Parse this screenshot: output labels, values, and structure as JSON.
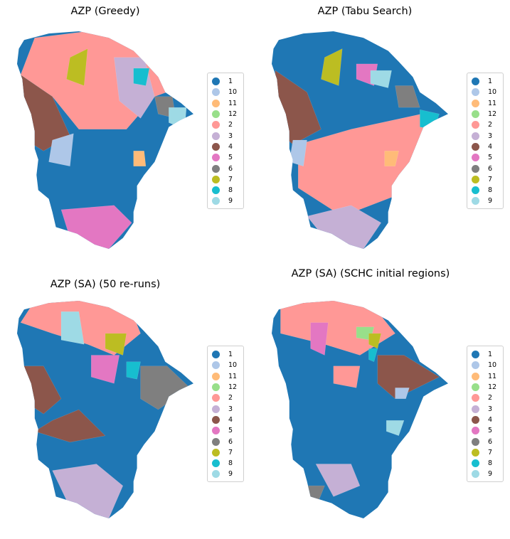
{
  "legend_labels": [
    "1",
    "10",
    "11",
    "12",
    "2",
    "3",
    "4",
    "5",
    "6",
    "7",
    "8",
    "9"
  ],
  "colors": {
    "1": "#1f77b4",
    "10": "#aec7e8",
    "11": "#ffbb78",
    "12": "#98df8a",
    "2": "#ff9896",
    "3": "#c5b0d5",
    "4": "#8c564b",
    "5": "#e377c2",
    "6": "#7f7f7f",
    "7": "#bcbd22",
    "8": "#17becf",
    "9": "#9edae5"
  },
  "panels": [
    {
      "title": "AZP (Greedy)",
      "base_region": "1",
      "regions": [
        {
          "label": "2",
          "points": [
            [
              0.1,
              0.03
            ],
            [
              0.4,
              0.0
            ],
            [
              0.75,
              0.05
            ],
            [
              0.95,
              0.25
            ],
            [
              0.78,
              0.3
            ],
            [
              0.62,
              0.45
            ],
            [
              0.35,
              0.45
            ],
            [
              0.2,
              0.3
            ],
            [
              0.02,
              0.2
            ]
          ]
        },
        {
          "label": "4",
          "points": [
            [
              0.02,
              0.2
            ],
            [
              0.2,
              0.3
            ],
            [
              0.3,
              0.48
            ],
            [
              0.15,
              0.55
            ],
            [
              0.05,
              0.5
            ],
            [
              0.0,
              0.3
            ]
          ]
        },
        {
          "label": "7",
          "points": [
            [
              0.3,
              0.12
            ],
            [
              0.4,
              0.08
            ],
            [
              0.38,
              0.25
            ],
            [
              0.28,
              0.22
            ]
          ]
        },
        {
          "label": "3",
          "points": [
            [
              0.55,
              0.12
            ],
            [
              0.72,
              0.12
            ],
            [
              0.78,
              0.3
            ],
            [
              0.7,
              0.4
            ],
            [
              0.58,
              0.32
            ]
          ]
        },
        {
          "label": "8",
          "points": [
            [
              0.66,
              0.17
            ],
            [
              0.75,
              0.17
            ],
            [
              0.73,
              0.25
            ],
            [
              0.66,
              0.24
            ]
          ]
        },
        {
          "label": "6",
          "points": [
            [
              0.78,
              0.3
            ],
            [
              0.88,
              0.3
            ],
            [
              0.9,
              0.4
            ],
            [
              0.8,
              0.38
            ]
          ]
        },
        {
          "label": "9",
          "points": [
            [
              0.86,
              0.35
            ],
            [
              0.96,
              0.35
            ],
            [
              0.95,
              0.45
            ],
            [
              0.86,
              0.42
            ]
          ]
        },
        {
          "label": "10",
          "points": [
            [
              0.2,
              0.5
            ],
            [
              0.32,
              0.47
            ],
            [
              0.3,
              0.62
            ],
            [
              0.18,
              0.6
            ]
          ]
        },
        {
          "label": "11",
          "points": [
            [
              0.66,
              0.55
            ],
            [
              0.72,
              0.55
            ],
            [
              0.73,
              0.62
            ],
            [
              0.66,
              0.62
            ]
          ]
        },
        {
          "label": "5",
          "points": [
            [
              0.25,
              0.82
            ],
            [
              0.55,
              0.8
            ],
            [
              0.65,
              0.88
            ],
            [
              0.52,
              1.0
            ],
            [
              0.3,
              0.95
            ]
          ]
        }
      ]
    },
    {
      "title": "AZP (Tabu Search)",
      "base_region": "1",
      "regions": [
        {
          "label": "2",
          "points": [
            [
              0.15,
              0.52
            ],
            [
              0.45,
              0.45
            ],
            [
              0.85,
              0.38
            ],
            [
              0.88,
              0.52
            ],
            [
              0.72,
              0.75
            ],
            [
              0.4,
              0.85
            ],
            [
              0.15,
              0.72
            ]
          ]
        },
        {
          "label": "3",
          "points": [
            [
              0.2,
              0.85
            ],
            [
              0.45,
              0.8
            ],
            [
              0.62,
              0.88
            ],
            [
              0.52,
              1.0
            ],
            [
              0.3,
              0.95
            ]
          ]
        },
        {
          "label": "4",
          "points": [
            [
              0.02,
              0.18
            ],
            [
              0.2,
              0.28
            ],
            [
              0.28,
              0.45
            ],
            [
              0.12,
              0.52
            ],
            [
              0.02,
              0.45
            ]
          ]
        },
        {
          "label": "7",
          "points": [
            [
              0.3,
              0.12
            ],
            [
              0.4,
              0.08
            ],
            [
              0.38,
              0.25
            ],
            [
              0.28,
              0.22
            ]
          ]
        },
        {
          "label": "5",
          "points": [
            [
              0.48,
              0.15
            ],
            [
              0.6,
              0.15
            ],
            [
              0.58,
              0.25
            ],
            [
              0.48,
              0.22
            ]
          ]
        },
        {
          "label": "9",
          "points": [
            [
              0.56,
              0.18
            ],
            [
              0.68,
              0.18
            ],
            [
              0.66,
              0.26
            ],
            [
              0.56,
              0.24
            ]
          ]
        },
        {
          "label": "6",
          "points": [
            [
              0.7,
              0.25
            ],
            [
              0.8,
              0.25
            ],
            [
              0.84,
              0.35
            ],
            [
              0.72,
              0.35
            ]
          ]
        },
        {
          "label": "8",
          "points": [
            [
              0.84,
              0.36
            ],
            [
              0.95,
              0.38
            ],
            [
              0.92,
              0.45
            ],
            [
              0.84,
              0.44
            ]
          ]
        },
        {
          "label": "10",
          "points": [
            [
              0.12,
              0.5
            ],
            [
              0.2,
              0.5
            ],
            [
              0.18,
              0.62
            ],
            [
              0.1,
              0.6
            ]
          ]
        },
        {
          "label": "11",
          "points": [
            [
              0.64,
              0.55
            ],
            [
              0.72,
              0.55
            ],
            [
              0.7,
              0.62
            ],
            [
              0.64,
              0.62
            ]
          ]
        }
      ]
    },
    {
      "title": "AZP (SA) (50 re-runs)",
      "base_region": "1",
      "regions": [
        {
          "label": "2",
          "points": [
            [
              0.1,
              0.0
            ],
            [
              0.4,
              0.0
            ],
            [
              0.65,
              0.05
            ],
            [
              0.7,
              0.15
            ],
            [
              0.55,
              0.25
            ],
            [
              0.4,
              0.2
            ],
            [
              0.2,
              0.15
            ],
            [
              0.02,
              0.1
            ]
          ]
        },
        {
          "label": "9",
          "points": [
            [
              0.25,
              0.05
            ],
            [
              0.35,
              0.05
            ],
            [
              0.38,
              0.2
            ],
            [
              0.25,
              0.18
            ]
          ]
        },
        {
          "label": "7",
          "points": [
            [
              0.5,
              0.15
            ],
            [
              0.62,
              0.15
            ],
            [
              0.6,
              0.25
            ],
            [
              0.5,
              0.22
            ]
          ]
        },
        {
          "label": "5",
          "points": [
            [
              0.42,
              0.25
            ],
            [
              0.58,
              0.25
            ],
            [
              0.55,
              0.38
            ],
            [
              0.42,
              0.35
            ]
          ]
        },
        {
          "label": "8",
          "points": [
            [
              0.62,
              0.28
            ],
            [
              0.7,
              0.28
            ],
            [
              0.68,
              0.36
            ],
            [
              0.62,
              0.35
            ]
          ]
        },
        {
          "label": "6",
          "points": [
            [
              0.7,
              0.3
            ],
            [
              0.85,
              0.3
            ],
            [
              0.98,
              0.4
            ],
            [
              0.8,
              0.5
            ],
            [
              0.7,
              0.45
            ]
          ]
        },
        {
          "label": "4",
          "points": [
            [
              0.02,
              0.3
            ],
            [
              0.15,
              0.3
            ],
            [
              0.25,
              0.45
            ],
            [
              0.15,
              0.52
            ],
            [
              0.02,
              0.45
            ]
          ]
        },
        {
          "label": "4",
          "points": [
            [
              0.2,
              0.55
            ],
            [
              0.35,
              0.5
            ],
            [
              0.5,
              0.62
            ],
            [
              0.3,
              0.65
            ],
            [
              0.1,
              0.6
            ]
          ]
        },
        {
          "label": "3",
          "points": [
            [
              0.2,
              0.78
            ],
            [
              0.45,
              0.75
            ],
            [
              0.6,
              0.85
            ],
            [
              0.52,
              1.0
            ],
            [
              0.3,
              0.95
            ]
          ]
        }
      ]
    },
    {
      "title": "AZP (SA) (SCHC initial regions)",
      "base_region": "1",
      "regions": [
        {
          "label": "2",
          "points": [
            [
              0.05,
              0.0
            ],
            [
              0.4,
              0.0
            ],
            [
              0.6,
              0.05
            ],
            [
              0.7,
              0.15
            ],
            [
              0.5,
              0.25
            ],
            [
              0.3,
              0.2
            ],
            [
              0.05,
              0.15
            ]
          ]
        },
        {
          "label": "5",
          "points": [
            [
              0.22,
              0.1
            ],
            [
              0.32,
              0.1
            ],
            [
              0.3,
              0.25
            ],
            [
              0.22,
              0.22
            ]
          ]
        },
        {
          "label": "12",
          "points": [
            [
              0.48,
              0.12
            ],
            [
              0.58,
              0.12
            ],
            [
              0.56,
              0.18
            ],
            [
              0.48,
              0.17
            ]
          ]
        },
        {
          "label": "7",
          "points": [
            [
              0.55,
              0.15
            ],
            [
              0.62,
              0.15
            ],
            [
              0.6,
              0.22
            ],
            [
              0.55,
              0.2
            ]
          ]
        },
        {
          "label": "8",
          "points": [
            [
              0.55,
              0.22
            ],
            [
              0.6,
              0.22
            ],
            [
              0.58,
              0.28
            ],
            [
              0.55,
              0.27
            ]
          ]
        },
        {
          "label": "2",
          "points": [
            [
              0.35,
              0.3
            ],
            [
              0.5,
              0.3
            ],
            [
              0.48,
              0.4
            ],
            [
              0.35,
              0.38
            ]
          ]
        },
        {
          "label": "4",
          "points": [
            [
              0.6,
              0.25
            ],
            [
              0.75,
              0.25
            ],
            [
              0.95,
              0.35
            ],
            [
              0.7,
              0.45
            ],
            [
              0.6,
              0.38
            ]
          ]
        },
        {
          "label": "9",
          "points": [
            [
              0.65,
              0.55
            ],
            [
              0.75,
              0.55
            ],
            [
              0.72,
              0.62
            ],
            [
              0.65,
              0.6
            ]
          ]
        },
        {
          "label": "10",
          "points": [
            [
              0.7,
              0.4
            ],
            [
              0.78,
              0.4
            ],
            [
              0.76,
              0.45
            ],
            [
              0.7,
              0.45
            ]
          ]
        },
        {
          "label": "3",
          "points": [
            [
              0.25,
              0.75
            ],
            [
              0.45,
              0.75
            ],
            [
              0.5,
              0.85
            ],
            [
              0.35,
              0.9
            ]
          ]
        },
        {
          "label": "6",
          "points": [
            [
              0.15,
              0.85
            ],
            [
              0.3,
              0.85
            ],
            [
              0.25,
              0.95
            ],
            [
              0.15,
              0.92
            ]
          ]
        }
      ]
    }
  ]
}
